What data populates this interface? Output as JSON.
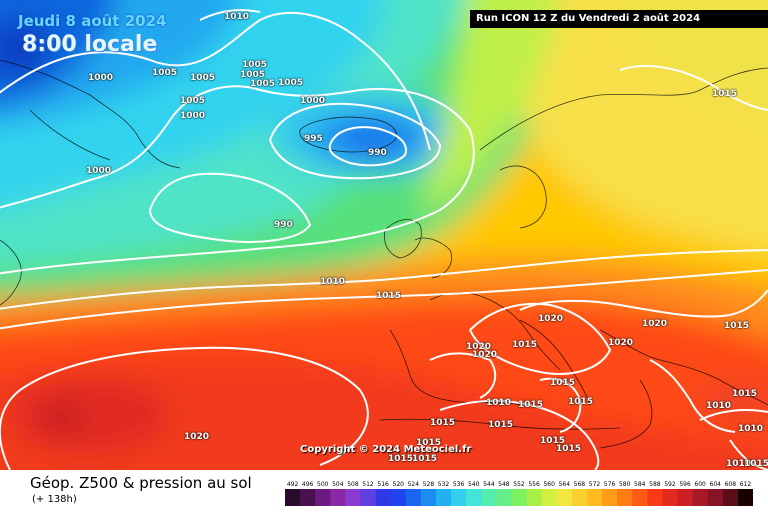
{
  "header": {
    "forecast_date": "Jeudi 8 août 2024",
    "forecast_time": "8:00 locale",
    "run_info": "Run ICON 12 Z du Vendredi 2 août 2024"
  },
  "copyright": "Copyright © 2024 Meteociel.fr",
  "footer": {
    "title": "Géop. Z500 & pression au sol",
    "lead_time": "(+ 138h)"
  },
  "isobar_labels": [
    "1010",
    "1000",
    "1005",
    "1005",
    "1005",
    "1005",
    "1005",
    "1005",
    "1005",
    "1000",
    "1000",
    "1000",
    "995",
    "990",
    "990",
    "1010",
    "1015",
    "1015",
    "1020",
    "1020",
    "1015",
    "1020",
    "1020",
    "1020",
    "1015",
    "1015",
    "1010",
    "1015",
    "1015",
    "1015",
    "1010",
    "1015",
    "1015",
    "1010",
    "1020",
    "1015",
    "1015",
    "1015",
    "1015",
    "1015",
    "1010",
    "1015"
  ],
  "color_scale": {
    "labels": [
      "492",
      "496",
      "500",
      "504",
      "508",
      "512",
      "516",
      "520",
      "524",
      "528",
      "532",
      "536",
      "540",
      "544",
      "548",
      "552",
      "556",
      "560",
      "564",
      "568",
      "572",
      "576",
      "580",
      "584",
      "588",
      "592",
      "596",
      "600",
      "604",
      "608",
      "612"
    ],
    "colors": [
      "#2a0a2a",
      "#4a1050",
      "#6a1a80",
      "#8a28a8",
      "#8a3ad0",
      "#6040e0",
      "#3038e8",
      "#1f44f0",
      "#1a66ee",
      "#1c8cf0",
      "#22b0f0",
      "#33d0ee",
      "#44e4d8",
      "#55ecb0",
      "#66ee88",
      "#7cf060",
      "#a8f048",
      "#d2f040",
      "#f4e640",
      "#f8d030",
      "#ffba20",
      "#ff9c18",
      "#ff7c14",
      "#ff5a14",
      "#f83a18",
      "#e42a1e",
      "#cc1f24",
      "#a81826",
      "#861424",
      "#5a0e18",
      "#1a0000"
    ]
  }
}
